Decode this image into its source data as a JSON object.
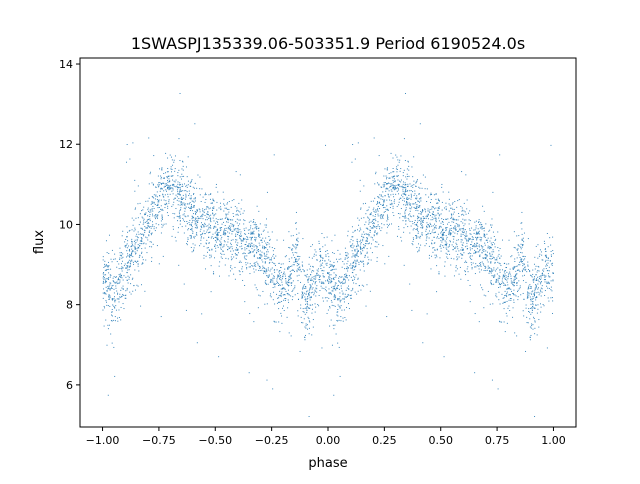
{
  "chart_data": {
    "type": "scatter",
    "title": "1SWASPJ135339.06-503351.9 Period 6190524.0s",
    "xlabel": "phase",
    "ylabel": "flux",
    "xlim": [
      -1.1,
      1.1
    ],
    "ylim": [
      4.95,
      14.15
    ],
    "xticks": [
      -1.0,
      -0.75,
      -0.5,
      -0.25,
      0.0,
      0.25,
      0.5,
      0.75,
      1.0
    ],
    "xtick_labels": [
      "−1.00",
      "−0.75",
      "−0.50",
      "−0.25",
      "0.00",
      "0.25",
      "0.50",
      "0.75",
      "1.00"
    ],
    "yticks": [
      6,
      8,
      10,
      12,
      14
    ],
    "ytick_labels": [
      "6",
      "8",
      "10",
      "12",
      "14"
    ],
    "grid": false,
    "marker_color": "#1f77b4",
    "series": [
      {
        "name": "flux",
        "description": "phase-folded light curve, repeated over two cycles; mean flux per phase (0 to 1)",
        "mean_curve_phase": [
          0.0,
          0.03,
          0.06,
          0.1,
          0.15,
          0.2,
          0.25,
          0.3,
          0.35,
          0.4,
          0.45,
          0.5,
          0.55,
          0.6,
          0.65,
          0.7,
          0.75,
          0.78,
          0.82,
          0.86,
          0.9,
          0.93,
          0.96,
          1.0
        ],
        "mean_curve_flux": [
          8.7,
          8.4,
          8.2,
          8.9,
          9.4,
          10.0,
          10.5,
          10.9,
          10.6,
          10.2,
          10.0,
          9.9,
          9.8,
          9.7,
          9.5,
          9.4,
          8.9,
          8.4,
          8.5,
          9.2,
          8.0,
          8.4,
          8.9,
          8.7
        ],
        "scatter_sigma": 0.45,
        "points_per_cycle": 2200
      }
    ]
  }
}
